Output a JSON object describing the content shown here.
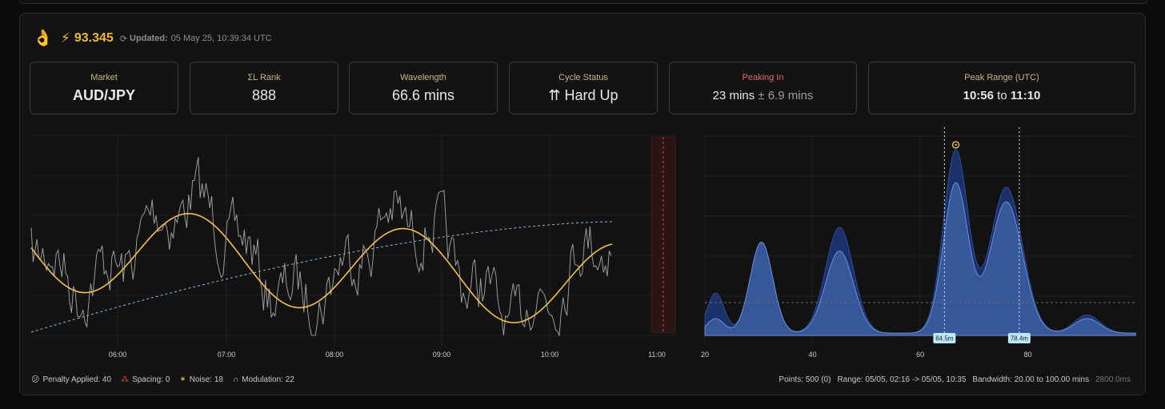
{
  "header": {
    "hand_icon": "ok-hand-icon",
    "bolt_icon": "lightning-icon",
    "price": "93.345",
    "updated_label": "Updated:",
    "updated_value": "05 May 25, 10:39:34 UTC"
  },
  "cards": {
    "market": {
      "label": "Market",
      "value": "AUD/JPY"
    },
    "rank": {
      "label": "ΣL Rank",
      "value": "888"
    },
    "wavelength": {
      "label": "Wavelength",
      "value": "66.6 mins"
    },
    "cycle": {
      "label": "Cycle Status",
      "arrow": "⇈",
      "value": "Hard Up"
    },
    "peaking": {
      "label": "Peaking In",
      "value": "23 mins",
      "pm": "± 6.9 mins"
    },
    "range": {
      "label": "Peak Range (UTC)",
      "start": "10:56",
      "to": "to",
      "end": "11:10"
    }
  },
  "chart_data": [
    {
      "type": "line",
      "x_ticks": [
        "06:00",
        "07:00",
        "08:00",
        "09:00",
        "10:00",
        "11:00"
      ],
      "series": [
        {
          "style": "price",
          "color": "#9a9a9a"
        },
        {
          "style": "cycle",
          "color": "#f2c14e",
          "wavelength_mins": 66.6
        },
        {
          "style": "trend",
          "color": "#8fb7d8",
          "dashed": true
        }
      ],
      "projected_peak_band": [
        "10:56",
        "11:10"
      ],
      "grid": true
    },
    {
      "type": "area",
      "x_ticks": [
        "20",
        "40",
        "60",
        "80"
      ],
      "x_range": [
        20,
        100
      ],
      "peaks": [
        {
          "x": 22,
          "front": 0.08,
          "back": 0.22
        },
        {
          "x": 30.5,
          "front": 0.5,
          "back": 0.5
        },
        {
          "x": 45,
          "front": 0.45,
          "back": 0.58
        },
        {
          "x": 66.6,
          "front": 0.82,
          "back": 1.0
        },
        {
          "x": 76,
          "front": 0.72,
          "back": 0.8
        },
        {
          "x": 91,
          "front": 0.08,
          "back": 0.1
        }
      ],
      "markers": [
        {
          "x": 64.5,
          "label": "64.5m"
        },
        {
          "x": 78.4,
          "label": "78.4m"
        }
      ],
      "threshold": 0.18,
      "colors": {
        "front": "#3e63a8",
        "back": "#1e3470"
      },
      "grid": true
    }
  ],
  "footer": {
    "penalty_icon": "confused-face-icon",
    "penalty": "Penalty Applied: 40",
    "spacing_icon": "spacing-icon",
    "spacing": "Spacing: 0",
    "noise_icon": "noise-icon",
    "noise": "Noise: 18",
    "modulation_icon": "modulation-icon",
    "modulation": "Modulation: 22",
    "points": "Points: 500 (0)",
    "range": "Range: 05/05, 02:16 -> 05/05, 10:35",
    "bandwidth": "Bandwidth: 20.00 to 100.00 mins",
    "duration": "2800.0ms"
  }
}
